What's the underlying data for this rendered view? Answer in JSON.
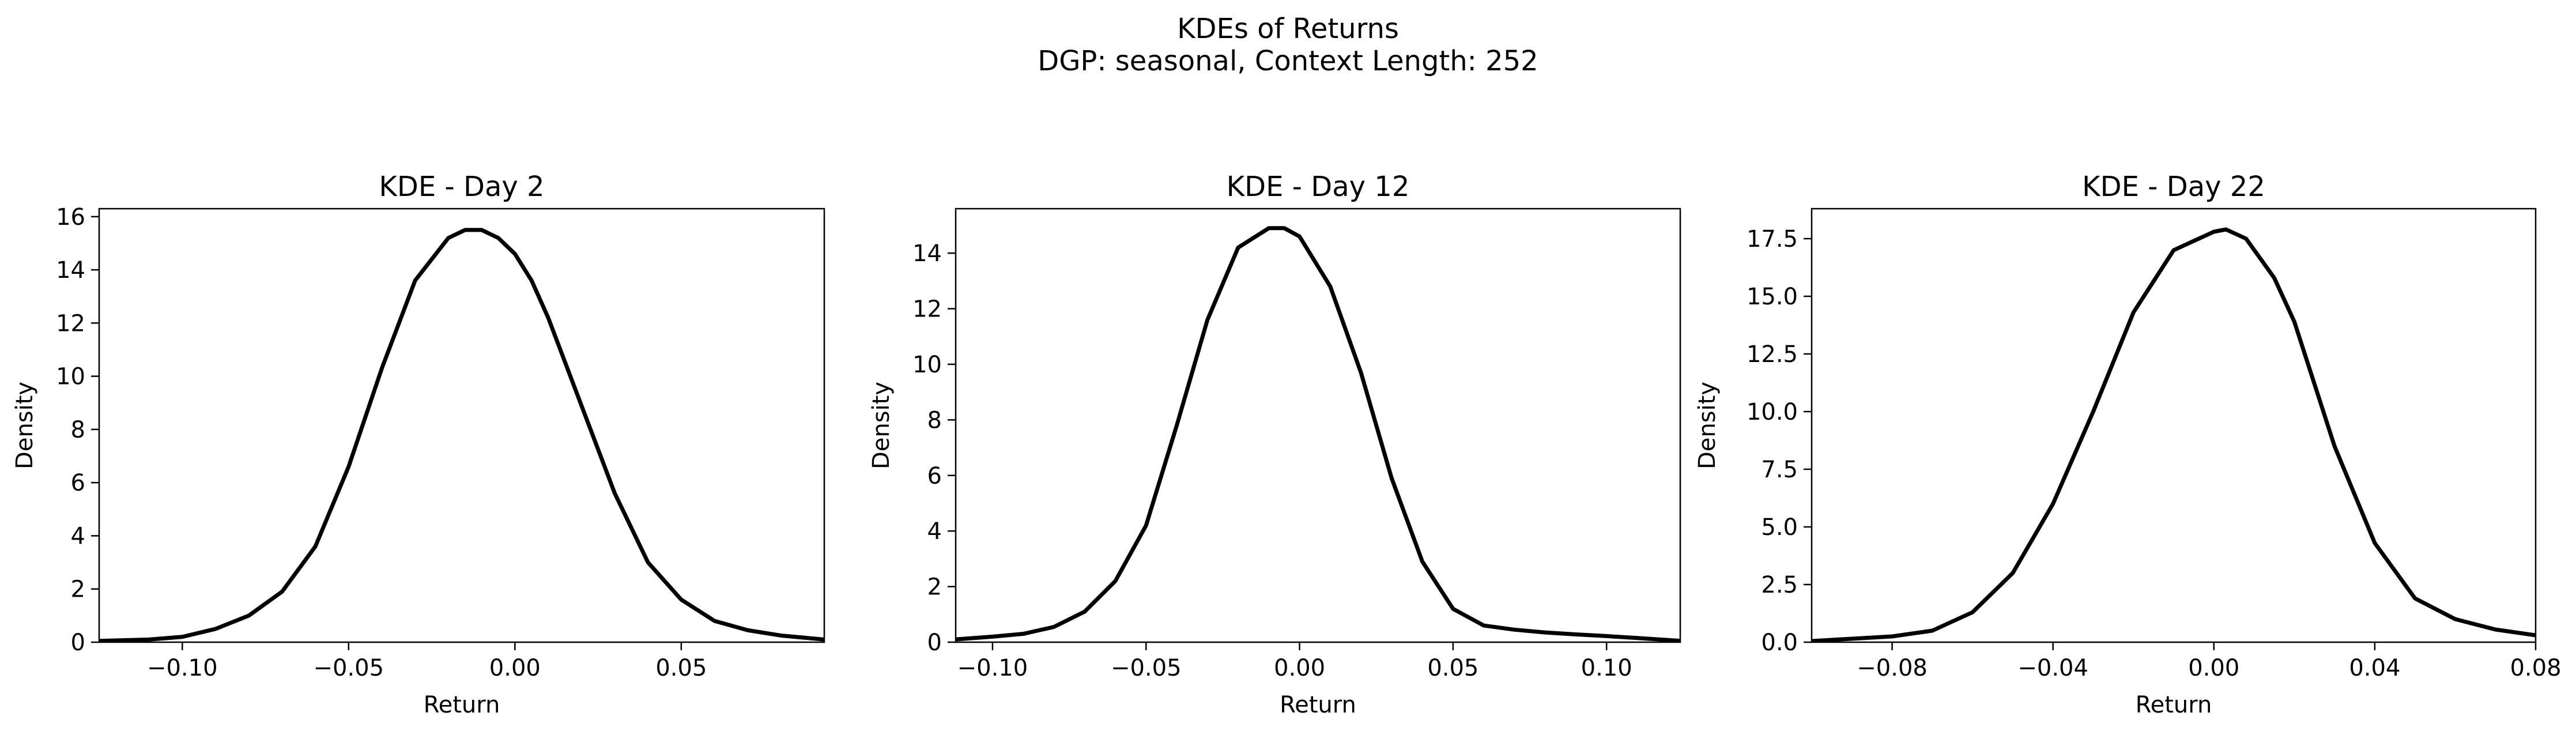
{
  "figure": {
    "title_line1": "KDEs of Returns",
    "title_line2": "DGP: seasonal, Context Length: 252"
  },
  "chart_data": [
    {
      "type": "line",
      "title": "KDE - Day 2",
      "xlabel": "Return",
      "ylabel": "Density",
      "xlim": [
        -0.125,
        0.093
      ],
      "ylim": [
        0,
        16.3
      ],
      "xticks": [
        -0.1,
        -0.05,
        0.0,
        0.05
      ],
      "xtick_labels": [
        "−0.10",
        "−0.05",
        "0.00",
        "0.05"
      ],
      "yticks": [
        0,
        2,
        4,
        6,
        8,
        10,
        12,
        14,
        16
      ],
      "ytick_labels": [
        "0",
        "2",
        "4",
        "6",
        "8",
        "10",
        "12",
        "14",
        "16"
      ],
      "grid": false,
      "line_color": "#000000",
      "series": [
        {
          "x": [
            -0.125,
            -0.11,
            -0.1,
            -0.09,
            -0.08,
            -0.07,
            -0.06,
            -0.05,
            -0.04,
            -0.03,
            -0.02,
            -0.015,
            -0.01,
            -0.005,
            0.0,
            0.005,
            0.01,
            0.02,
            0.03,
            0.04,
            0.05,
            0.06,
            0.07,
            0.08,
            0.093
          ],
          "y": [
            0.05,
            0.1,
            0.2,
            0.5,
            1.0,
            1.9,
            3.6,
            6.6,
            10.3,
            13.6,
            15.2,
            15.5,
            15.5,
            15.2,
            14.6,
            13.6,
            12.2,
            8.9,
            5.6,
            3.0,
            1.6,
            0.8,
            0.45,
            0.25,
            0.1
          ]
        }
      ]
    },
    {
      "type": "line",
      "title": "KDE - Day 12",
      "xlabel": "Return",
      "ylabel": "Density",
      "xlim": [
        -0.112,
        0.124
      ],
      "ylim": [
        0,
        15.6
      ],
      "xticks": [
        -0.1,
        -0.05,
        0.0,
        0.05,
        0.1
      ],
      "xtick_labels": [
        "−0.10",
        "−0.05",
        "0.00",
        "0.05",
        "0.10"
      ],
      "yticks": [
        0,
        2,
        4,
        6,
        8,
        10,
        12,
        14
      ],
      "ytick_labels": [
        "0",
        "2",
        "4",
        "6",
        "8",
        "10",
        "12",
        "14"
      ],
      "grid": false,
      "line_color": "#000000",
      "series": [
        {
          "x": [
            -0.112,
            -0.1,
            -0.09,
            -0.08,
            -0.07,
            -0.06,
            -0.05,
            -0.04,
            -0.03,
            -0.02,
            -0.01,
            -0.005,
            0.0,
            0.01,
            0.02,
            0.03,
            0.04,
            0.05,
            0.06,
            0.07,
            0.08,
            0.09,
            0.1,
            0.11,
            0.124
          ],
          "y": [
            0.1,
            0.2,
            0.3,
            0.55,
            1.1,
            2.2,
            4.2,
            7.8,
            11.6,
            14.2,
            14.9,
            14.9,
            14.6,
            12.8,
            9.7,
            5.9,
            2.9,
            1.2,
            0.6,
            0.45,
            0.35,
            0.28,
            0.22,
            0.15,
            0.05
          ]
        }
      ]
    },
    {
      "type": "line",
      "title": "KDE - Day 22",
      "xlabel": "Return",
      "ylabel": "Density",
      "xlim": [
        -0.1,
        0.08
      ],
      "ylim": [
        0,
        18.8
      ],
      "xticks": [
        -0.08,
        -0.04,
        0.0,
        0.04,
        0.08
      ],
      "xtick_labels": [
        "−0.08",
        "−0.04",
        "0.00",
        "0.04",
        "0.08"
      ],
      "yticks": [
        0,
        2.5,
        5,
        7.5,
        10,
        12.5,
        15,
        17.5
      ],
      "ytick_labels": [
        "0.0",
        "2.5",
        "5.0",
        "7.5",
        "10.0",
        "12.5",
        "15.0",
        "17.5"
      ],
      "grid": false,
      "line_color": "#000000",
      "series": [
        {
          "x": [
            -0.1,
            -0.09,
            -0.08,
            -0.07,
            -0.06,
            -0.05,
            -0.04,
            -0.03,
            -0.02,
            -0.01,
            0.0,
            0.003,
            0.008,
            0.015,
            0.02,
            0.03,
            0.04,
            0.05,
            0.06,
            0.07,
            0.08
          ],
          "y": [
            0.05,
            0.15,
            0.25,
            0.5,
            1.3,
            3.0,
            6.0,
            10.0,
            14.3,
            17.0,
            17.8,
            17.9,
            17.5,
            15.8,
            13.9,
            8.5,
            4.3,
            1.9,
            1.0,
            0.55,
            0.3
          ]
        }
      ]
    }
  ]
}
